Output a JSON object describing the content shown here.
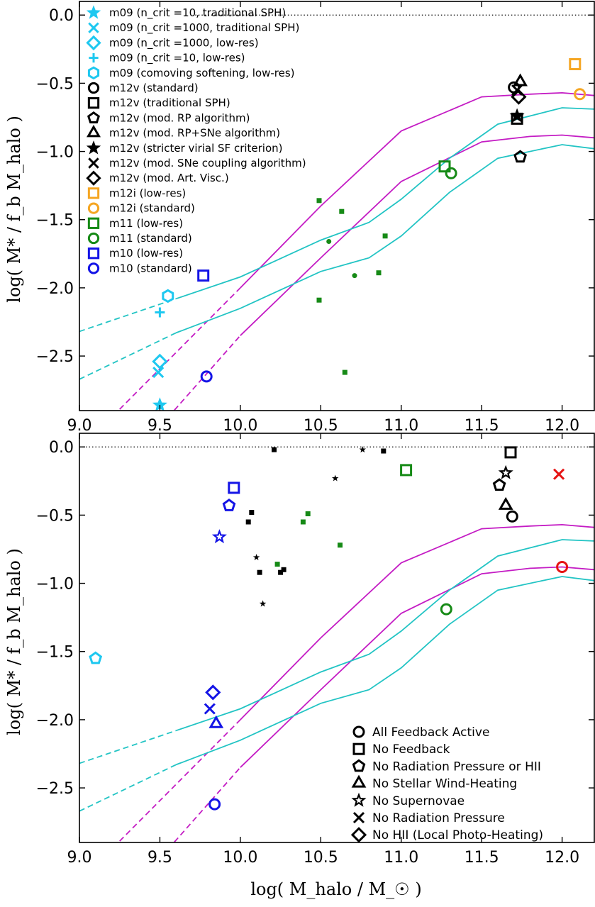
{
  "colors": {
    "cyan": "#1ec8f0",
    "black": "#000000",
    "orange": "#f5a623",
    "green": "#168a16",
    "blue": "#1414e6",
    "red": "#e61414",
    "magenta": "#c41cc4",
    "teal": "#22c4c4"
  },
  "axis_labels": {
    "ylabel": "log( M* / f_b M_halo )",
    "xlabel": "log( M_halo / M_☉ )"
  },
  "chart_data": [
    {
      "type": "scatter",
      "panel": "top",
      "xlim": [
        9.0,
        12.2
      ],
      "ylim": [
        -2.9,
        0.1
      ],
      "xticks": [
        "9.0",
        "9.5",
        "10.0",
        "10.5",
        "11.0",
        "11.5",
        "12.0"
      ],
      "yticks": [
        "0.0",
        "−0.5",
        "−1.0",
        "−1.5",
        "−2.0",
        "−2.5"
      ],
      "reference_line_y": 0.0,
      "legend": [
        {
          "label": "m09 (n_crit =10, traditional SPH)",
          "marker": "star",
          "color": "cyan",
          "filled": true
        },
        {
          "label": "m09 (n_crit =1000, traditional SPH)",
          "marker": "x",
          "color": "cyan"
        },
        {
          "label": "m09 (n_crit =1000, low-res)",
          "marker": "diamond",
          "color": "cyan"
        },
        {
          "label": "m09 (n_crit =10, low-res)",
          "marker": "plus",
          "color": "cyan"
        },
        {
          "label": "m09 (comoving softening, low-res)",
          "marker": "hexagon",
          "color": "cyan"
        },
        {
          "label": "m12v (standard)",
          "marker": "circle",
          "color": "black"
        },
        {
          "label": "m12v (traditional SPH)",
          "marker": "square",
          "color": "black"
        },
        {
          "label": "m12v (mod. RP algorithm)",
          "marker": "pentagon",
          "color": "black"
        },
        {
          "label": "m12v (mod. RP+SNe algorithm)",
          "marker": "triangle",
          "color": "black"
        },
        {
          "label": "m12v (stricter virial SF criterion)",
          "marker": "star",
          "color": "black",
          "filled": true
        },
        {
          "label": "m12v (mod. SNe coupling algorithm)",
          "marker": "x",
          "color": "black"
        },
        {
          "label": "m12v (mod. Art. Visc.)",
          "marker": "diamond",
          "color": "black"
        },
        {
          "label": "m12i (low-res)",
          "marker": "square",
          "color": "orange"
        },
        {
          "label": "m12i (standard)",
          "marker": "circle",
          "color": "orange"
        },
        {
          "label": "m11 (low-res)",
          "marker": "square",
          "color": "green"
        },
        {
          "label": "m11 (standard)",
          "marker": "circle",
          "color": "green"
        },
        {
          "label": "m10 (low-res)",
          "marker": "square",
          "color": "blue"
        },
        {
          "label": "m10 (standard)",
          "marker": "circle",
          "color": "blue"
        }
      ],
      "points": [
        {
          "x": 9.5,
          "y": -2.86,
          "marker": "star",
          "color": "cyan",
          "filled": true
        },
        {
          "x": 9.49,
          "y": -2.62,
          "marker": "x",
          "color": "cyan"
        },
        {
          "x": 9.5,
          "y": -2.54,
          "marker": "diamond",
          "color": "cyan"
        },
        {
          "x": 9.5,
          "y": -2.18,
          "marker": "plus",
          "color": "cyan"
        },
        {
          "x": 9.55,
          "y": -2.06,
          "marker": "hexagon",
          "color": "cyan"
        },
        {
          "x": 11.7,
          "y": -0.53,
          "marker": "circle",
          "color": "black"
        },
        {
          "x": 11.72,
          "y": -0.76,
          "marker": "square",
          "color": "black"
        },
        {
          "x": 11.74,
          "y": -1.04,
          "marker": "pentagon",
          "color": "black"
        },
        {
          "x": 11.74,
          "y": -0.49,
          "marker": "triangle",
          "color": "black"
        },
        {
          "x": 11.72,
          "y": -0.74,
          "marker": "star",
          "color": "black",
          "filled": true
        },
        {
          "x": 11.72,
          "y": -0.55,
          "marker": "x",
          "color": "black"
        },
        {
          "x": 11.73,
          "y": -0.6,
          "marker": "diamond",
          "color": "black"
        },
        {
          "x": 12.08,
          "y": -0.36,
          "marker": "square",
          "color": "orange"
        },
        {
          "x": 12.11,
          "y": -0.58,
          "marker": "circle",
          "color": "orange"
        },
        {
          "x": 11.27,
          "y": -1.11,
          "marker": "square",
          "color": "green"
        },
        {
          "x": 11.31,
          "y": -1.16,
          "marker": "circle",
          "color": "green"
        },
        {
          "x": 9.77,
          "y": -1.91,
          "marker": "square",
          "color": "blue"
        },
        {
          "x": 9.79,
          "y": -2.65,
          "marker": "circle",
          "color": "blue"
        },
        {
          "x": 10.49,
          "y": -1.36,
          "marker": "smallsquare",
          "color": "green"
        },
        {
          "x": 10.63,
          "y": -1.44,
          "marker": "smallsquare",
          "color": "green"
        },
        {
          "x": 10.9,
          "y": -1.62,
          "marker": "smallsquare",
          "color": "green"
        },
        {
          "x": 10.86,
          "y": -1.89,
          "marker": "smallsquare",
          "color": "green"
        },
        {
          "x": 10.49,
          "y": -2.09,
          "marker": "smallsquare",
          "color": "green"
        },
        {
          "x": 10.65,
          "y": -2.62,
          "marker": "smallsquare",
          "color": "green"
        },
        {
          "x": 10.55,
          "y": -1.66,
          "marker": "smalldot",
          "color": "green"
        },
        {
          "x": 10.71,
          "y": -1.91,
          "marker": "smalldot",
          "color": "green"
        }
      ],
      "curves": [
        {
          "color": "magenta",
          "dash_until": 10.0,
          "x": [
            9.25,
            10.0,
            10.5,
            11.0,
            11.5,
            11.8,
            12.0,
            12.2
          ],
          "y": [
            -2.89,
            -2.0,
            -1.4,
            -0.85,
            -0.6,
            -0.58,
            -0.57,
            -0.59
          ]
        },
        {
          "color": "magenta",
          "dash_until": 10.0,
          "x": [
            9.4,
            10.0,
            10.5,
            11.0,
            11.5,
            11.8,
            12.0,
            12.2
          ],
          "y": [
            -3.15,
            -2.35,
            -1.78,
            -1.22,
            -0.93,
            -0.89,
            -0.88,
            -0.9
          ]
        },
        {
          "color": "teal",
          "dash_until": 9.6,
          "x": [
            9.0,
            9.6,
            10.0,
            10.5,
            10.8,
            11.0,
            11.3,
            11.6,
            12.0,
            12.2
          ],
          "y": [
            -2.32,
            -2.08,
            -1.92,
            -1.65,
            -1.52,
            -1.35,
            -1.05,
            -0.8,
            -0.68,
            -0.69
          ]
        },
        {
          "color": "teal",
          "dash_until": 9.6,
          "x": [
            9.0,
            9.6,
            10.0,
            10.5,
            10.8,
            11.0,
            11.3,
            11.6,
            12.0,
            12.2
          ],
          "y": [
            -2.67,
            -2.33,
            -2.15,
            -1.88,
            -1.78,
            -1.62,
            -1.3,
            -1.05,
            -0.95,
            -0.98
          ]
        }
      ]
    },
    {
      "type": "scatter",
      "panel": "bottom",
      "xlim": [
        9.0,
        12.2
      ],
      "ylim": [
        -2.9,
        0.1
      ],
      "xticks": [
        "9.0",
        "9.5",
        "10.0",
        "10.5",
        "11.0",
        "11.5",
        "12.0"
      ],
      "yticks": [
        "0.0",
        "−0.5",
        "−1.0",
        "−1.5",
        "−2.0",
        "−2.5"
      ],
      "reference_line_y": 0.0,
      "legend": [
        {
          "label": "All Feedback Active",
          "marker": "circle"
        },
        {
          "label": "No Feedback",
          "marker": "square"
        },
        {
          "label": "No Radiation Pressure or HII",
          "marker": "pentagon"
        },
        {
          "label": "No Stellar Wind-Heating",
          "marker": "triangle"
        },
        {
          "label": "No Supernovae",
          "marker": "star"
        },
        {
          "label": "No Radiation Pressure",
          "marker": "x"
        },
        {
          "label": "No HII (Local Photo-Heating)",
          "marker": "diamond"
        }
      ],
      "points": [
        {
          "x": 9.1,
          "y": -1.55,
          "marker": "pentagon",
          "color": "cyan"
        },
        {
          "x": 9.96,
          "y": -0.3,
          "marker": "square",
          "color": "blue"
        },
        {
          "x": 9.93,
          "y": -0.43,
          "marker": "pentagon",
          "color": "blue"
        },
        {
          "x": 9.87,
          "y": -0.66,
          "marker": "star",
          "color": "blue",
          "filled": false
        },
        {
          "x": 9.83,
          "y": -1.8,
          "marker": "diamond",
          "color": "blue"
        },
        {
          "x": 9.81,
          "y": -1.92,
          "marker": "x",
          "color": "blue"
        },
        {
          "x": 9.85,
          "y": -2.03,
          "marker": "triangle",
          "color": "blue"
        },
        {
          "x": 9.84,
          "y": -2.62,
          "marker": "circle",
          "color": "blue"
        },
        {
          "x": 11.03,
          "y": -0.17,
          "marker": "square",
          "color": "green"
        },
        {
          "x": 11.28,
          "y": -1.19,
          "marker": "circle",
          "color": "green"
        },
        {
          "x": 11.68,
          "y": -0.04,
          "marker": "square",
          "color": "black"
        },
        {
          "x": 11.65,
          "y": -0.19,
          "marker": "star",
          "color": "black",
          "filled": false
        },
        {
          "x": 11.61,
          "y": -0.28,
          "marker": "pentagon",
          "color": "black"
        },
        {
          "x": 11.65,
          "y": -0.43,
          "marker": "triangle",
          "color": "black"
        },
        {
          "x": 11.69,
          "y": -0.51,
          "marker": "circle",
          "color": "black"
        },
        {
          "x": 11.98,
          "y": -0.2,
          "marker": "x",
          "color": "red"
        },
        {
          "x": 12.0,
          "y": -0.88,
          "marker": "circle",
          "color": "red"
        },
        {
          "x": 10.21,
          "y": -0.02,
          "marker": "smallsquare",
          "color": "black"
        },
        {
          "x": 10.89,
          "y": -0.03,
          "marker": "smallsquare",
          "color": "black"
        },
        {
          "x": 10.07,
          "y": -0.48,
          "marker": "smallsquare",
          "color": "black"
        },
        {
          "x": 10.05,
          "y": -0.55,
          "marker": "smallsquare",
          "color": "black"
        },
        {
          "x": 10.12,
          "y": -0.92,
          "marker": "smallsquare",
          "color": "black"
        },
        {
          "x": 10.25,
          "y": -0.92,
          "marker": "smallsquare",
          "color": "black"
        },
        {
          "x": 10.27,
          "y": -0.9,
          "marker": "smallsquare",
          "color": "black"
        },
        {
          "x": 10.76,
          "y": -0.02,
          "marker": "smallstar",
          "color": "black"
        },
        {
          "x": 10.59,
          "y": -0.23,
          "marker": "smallstar",
          "color": "black"
        },
        {
          "x": 10.1,
          "y": -0.81,
          "marker": "smallstar",
          "color": "black"
        },
        {
          "x": 10.14,
          "y": -1.15,
          "marker": "smallstar",
          "color": "black"
        },
        {
          "x": 10.42,
          "y": -0.49,
          "marker": "smallsquare",
          "color": "green"
        },
        {
          "x": 10.39,
          "y": -0.55,
          "marker": "smallsquare",
          "color": "green"
        },
        {
          "x": 10.62,
          "y": -0.72,
          "marker": "smallsquare",
          "color": "green"
        },
        {
          "x": 10.23,
          "y": -0.86,
          "marker": "smallsquare",
          "color": "green"
        }
      ],
      "curves": [
        {
          "color": "magenta",
          "dash_until": 10.0,
          "x": [
            9.25,
            10.0,
            10.5,
            11.0,
            11.5,
            11.8,
            12.0,
            12.2
          ],
          "y": [
            -2.89,
            -2.0,
            -1.4,
            -0.85,
            -0.6,
            -0.58,
            -0.57,
            -0.59
          ]
        },
        {
          "color": "magenta",
          "dash_until": 10.0,
          "x": [
            9.4,
            10.0,
            10.5,
            11.0,
            11.5,
            11.8,
            12.0,
            12.2
          ],
          "y": [
            -3.15,
            -2.35,
            -1.78,
            -1.22,
            -0.93,
            -0.89,
            -0.88,
            -0.9
          ]
        },
        {
          "color": "teal",
          "dash_until": 9.6,
          "x": [
            9.0,
            9.6,
            10.0,
            10.5,
            10.8,
            11.0,
            11.3,
            11.6,
            12.0,
            12.2
          ],
          "y": [
            -2.32,
            -2.08,
            -1.92,
            -1.65,
            -1.52,
            -1.35,
            -1.05,
            -0.8,
            -0.68,
            -0.69
          ]
        },
        {
          "color": "teal",
          "dash_until": 9.6,
          "x": [
            9.0,
            9.6,
            10.0,
            10.5,
            10.8,
            11.0,
            11.3,
            11.6,
            12.0,
            12.2
          ],
          "y": [
            -2.67,
            -2.33,
            -2.15,
            -1.88,
            -1.78,
            -1.62,
            -1.3,
            -1.05,
            -0.95,
            -0.98
          ]
        }
      ]
    }
  ]
}
